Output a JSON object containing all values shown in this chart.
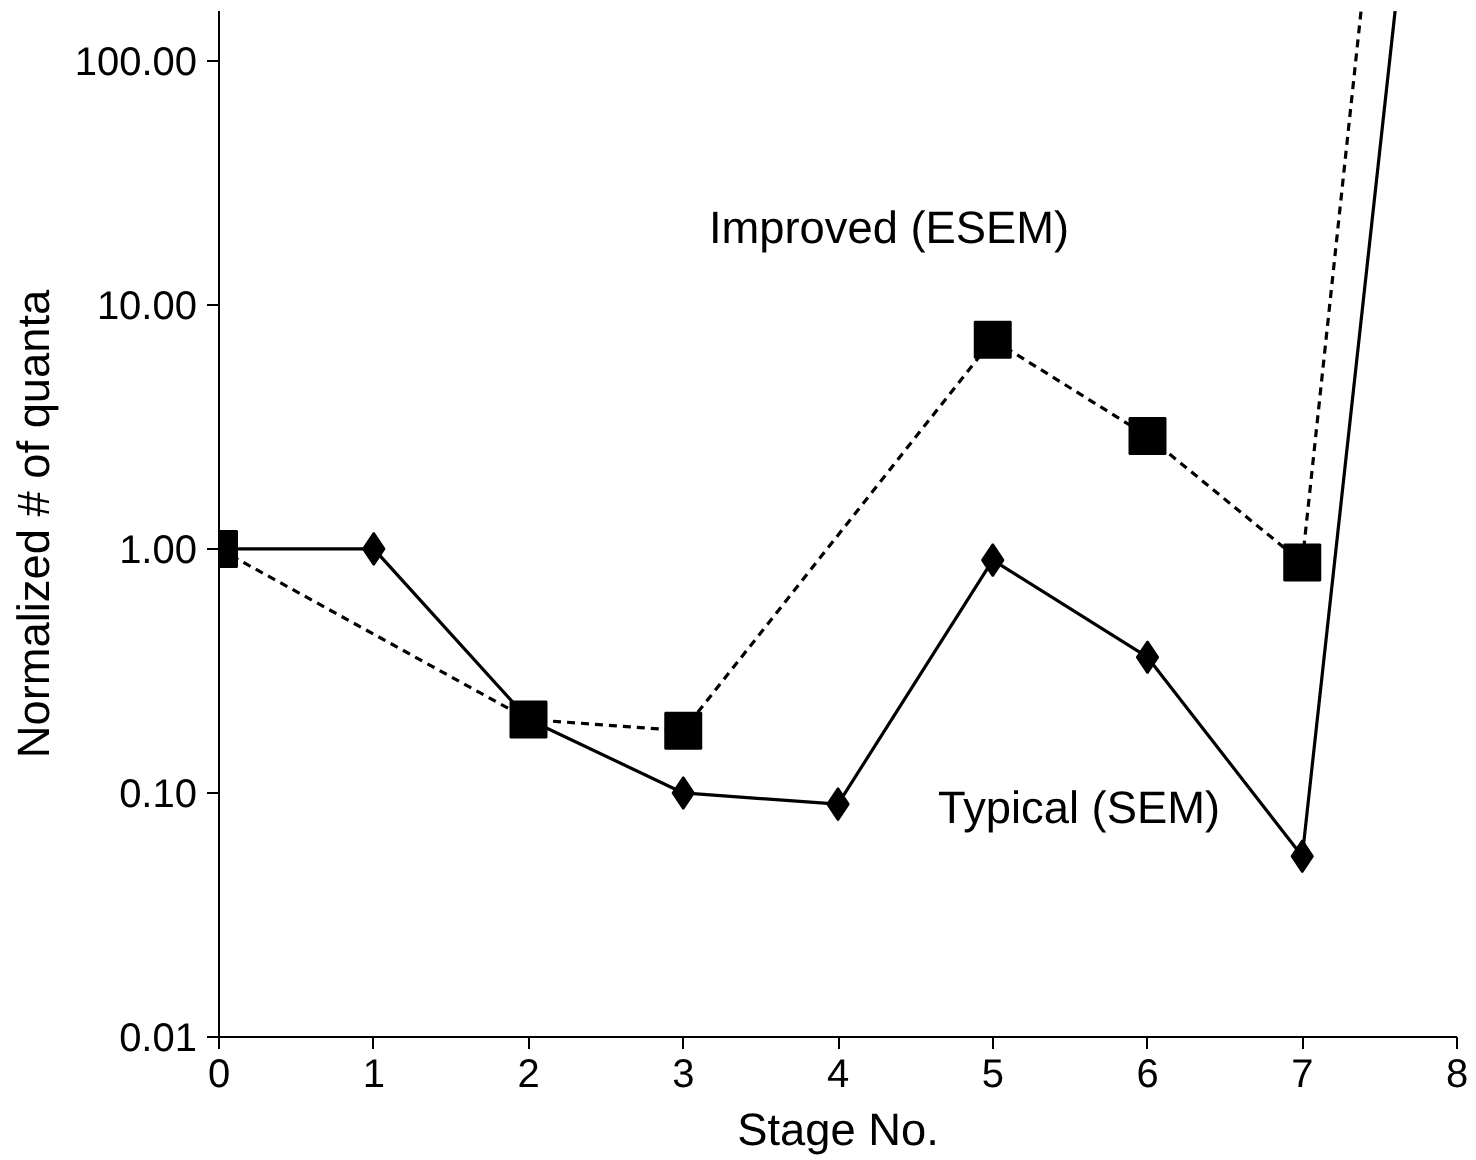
{
  "chart_data": {
    "type": "line",
    "xlabel": "Stage No.",
    "ylabel": "Normalized # of quanta",
    "log": "y",
    "xlim": [
      0,
      8
    ],
    "xticks": [
      0,
      1,
      2,
      3,
      4,
      5,
      6,
      7,
      8
    ],
    "ylim": [
      0.01,
      160
    ],
    "yticks": [
      {
        "value": 0.01,
        "label": "0.01"
      },
      {
        "value": 0.1,
        "label": "0.10"
      },
      {
        "value": 1,
        "label": "1.00"
      },
      {
        "value": 10,
        "label": "10.00"
      },
      {
        "value": 100,
        "label": "100.00"
      }
    ],
    "grid": false,
    "legend": false,
    "series": [
      {
        "name": "Improved (ESEM)",
        "color": "#000000",
        "line_style": "dashed",
        "marker": "square",
        "x": [
          0,
          2,
          3,
          5,
          6,
          7
        ],
        "values": [
          1.0,
          0.2,
          0.18,
          7.2,
          2.9,
          0.88
        ]
      },
      {
        "color": "#000000",
        "line_style": "dashed",
        "marker": "none",
        "x": [
          7,
          7.38
        ],
        "values": [
          0.88,
          160
        ]
      },
      {
        "name": "Typical (SEM)",
        "color": "#000000",
        "line_style": "solid",
        "marker": "diamond",
        "x": [
          0,
          1,
          2,
          3,
          4,
          5,
          6,
          7
        ],
        "values": [
          1.0,
          1.0,
          0.2,
          0.1,
          0.09,
          0.9,
          0.36,
          0.055
        ]
      },
      {
        "color": "#000000",
        "line_style": "solid",
        "marker": "none",
        "x": [
          7,
          7.6
        ],
        "values": [
          0.055,
          160
        ]
      }
    ]
  }
}
